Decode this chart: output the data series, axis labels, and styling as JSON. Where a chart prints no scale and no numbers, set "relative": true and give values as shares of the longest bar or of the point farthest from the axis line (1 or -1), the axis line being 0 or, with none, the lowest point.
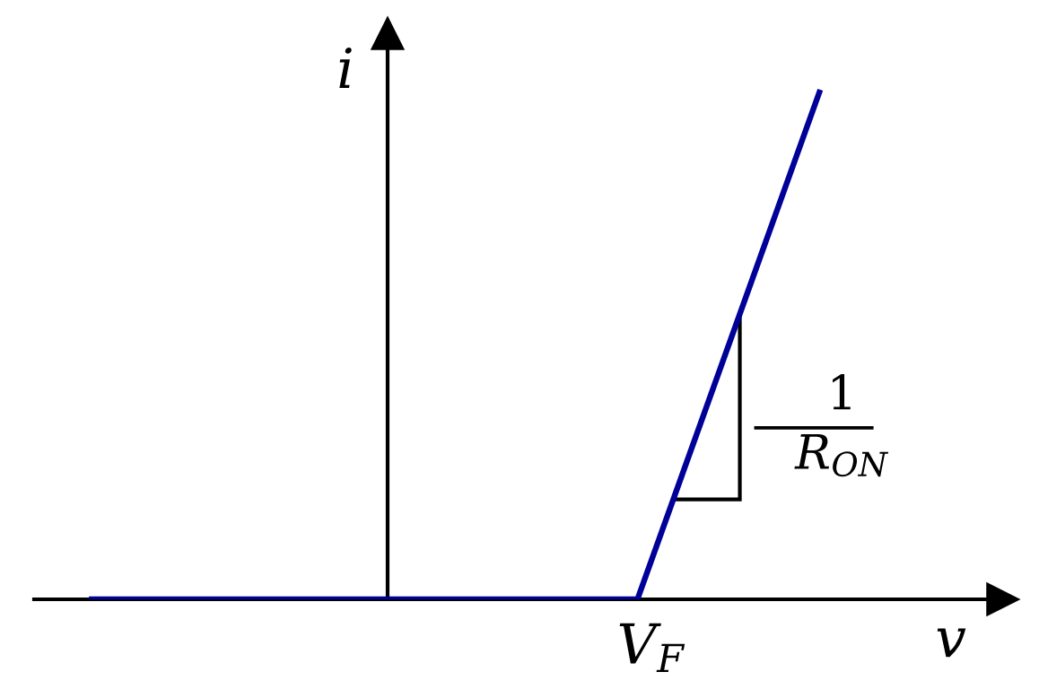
{
  "chart_data": {
    "type": "line",
    "relative": true,
    "xlabel": "v",
    "ylabel": "i",
    "categories": [
      null,
      null,
      null,
      null,
      null
    ],
    "series": [
      {
        "color": "#000099",
        "values": [
          0,
          0,
          0,
          0,
          1
        ]
      }
    ],
    "annotations": [
      "V$_{F}$",
      "1",
      "R$_{ON}$"
    ]
  }
}
